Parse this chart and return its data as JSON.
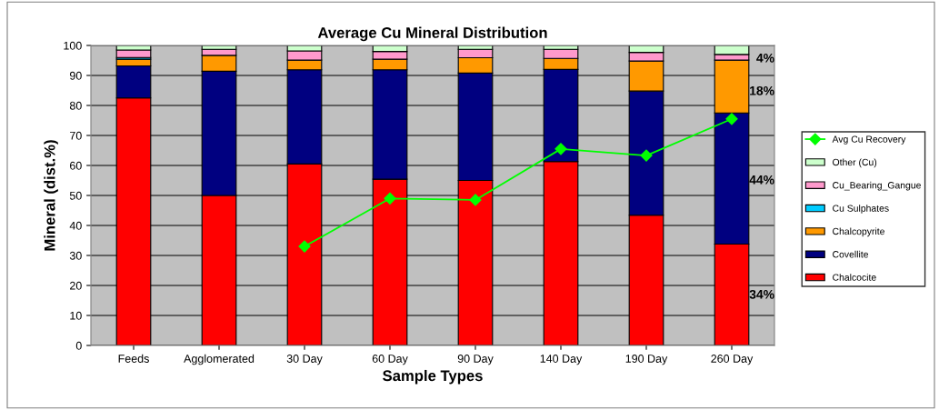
{
  "chart_data": {
    "type": "bar",
    "stacked": true,
    "title": "Average Cu Mineral Distribution",
    "xlabel": "Sample Types",
    "ylabel": "Mineral (dist.%)",
    "categories": [
      "Feeds",
      "Agglomerated",
      "30 Day",
      "60 Day",
      "90 Day",
      "140 Day",
      "190 Day",
      "260 Day"
    ],
    "series": [
      {
        "name": "Chalcocite",
        "color": "#ff0000",
        "values": [
          82.5,
          50.0,
          60.5,
          55.4,
          55.0,
          61.3,
          43.4,
          33.8
        ]
      },
      {
        "name": "Covellite",
        "color": "#000080",
        "values": [
          10.7,
          41.4,
          31.4,
          36.5,
          35.8,
          30.7,
          41.4,
          43.7
        ]
      },
      {
        "name": "Chalcopyrite",
        "color": "#ff9900",
        "values": [
          2.2,
          5.3,
          3.2,
          3.5,
          5.1,
          3.7,
          10.0,
          17.6
        ]
      },
      {
        "name": "Cu Sulphates",
        "color": "#00ccff",
        "values": [
          0.6,
          null,
          null,
          null,
          null,
          null,
          null,
          null
        ]
      },
      {
        "name": "Cu_Bearing_Gangue",
        "color": "#ff99cc",
        "values": [
          2.5,
          2.0,
          3.1,
          2.6,
          2.8,
          3.0,
          2.9,
          1.9
        ]
      },
      {
        "name": "Other (Cu)",
        "color": "#ccffcc",
        "values": [
          1.5,
          1.3,
          1.8,
          2.0,
          1.3,
          1.3,
          2.3,
          3.0
        ]
      },
      {
        "name": "Avg Cu Recovery",
        "type": "line",
        "color": "#00ff00",
        "marker": "diamond",
        "values": [
          null,
          null,
          33.0,
          49.0,
          48.5,
          65.5,
          63.3,
          75.5
        ]
      }
    ],
    "ylim": [
      0,
      100
    ],
    "yticks": [
      0,
      10,
      20,
      30,
      40,
      50,
      60,
      70,
      80,
      90,
      100
    ],
    "grid": "y",
    "legend": "right",
    "annotations": [
      "34%",
      "44%",
      "18%",
      "4%"
    ]
  }
}
